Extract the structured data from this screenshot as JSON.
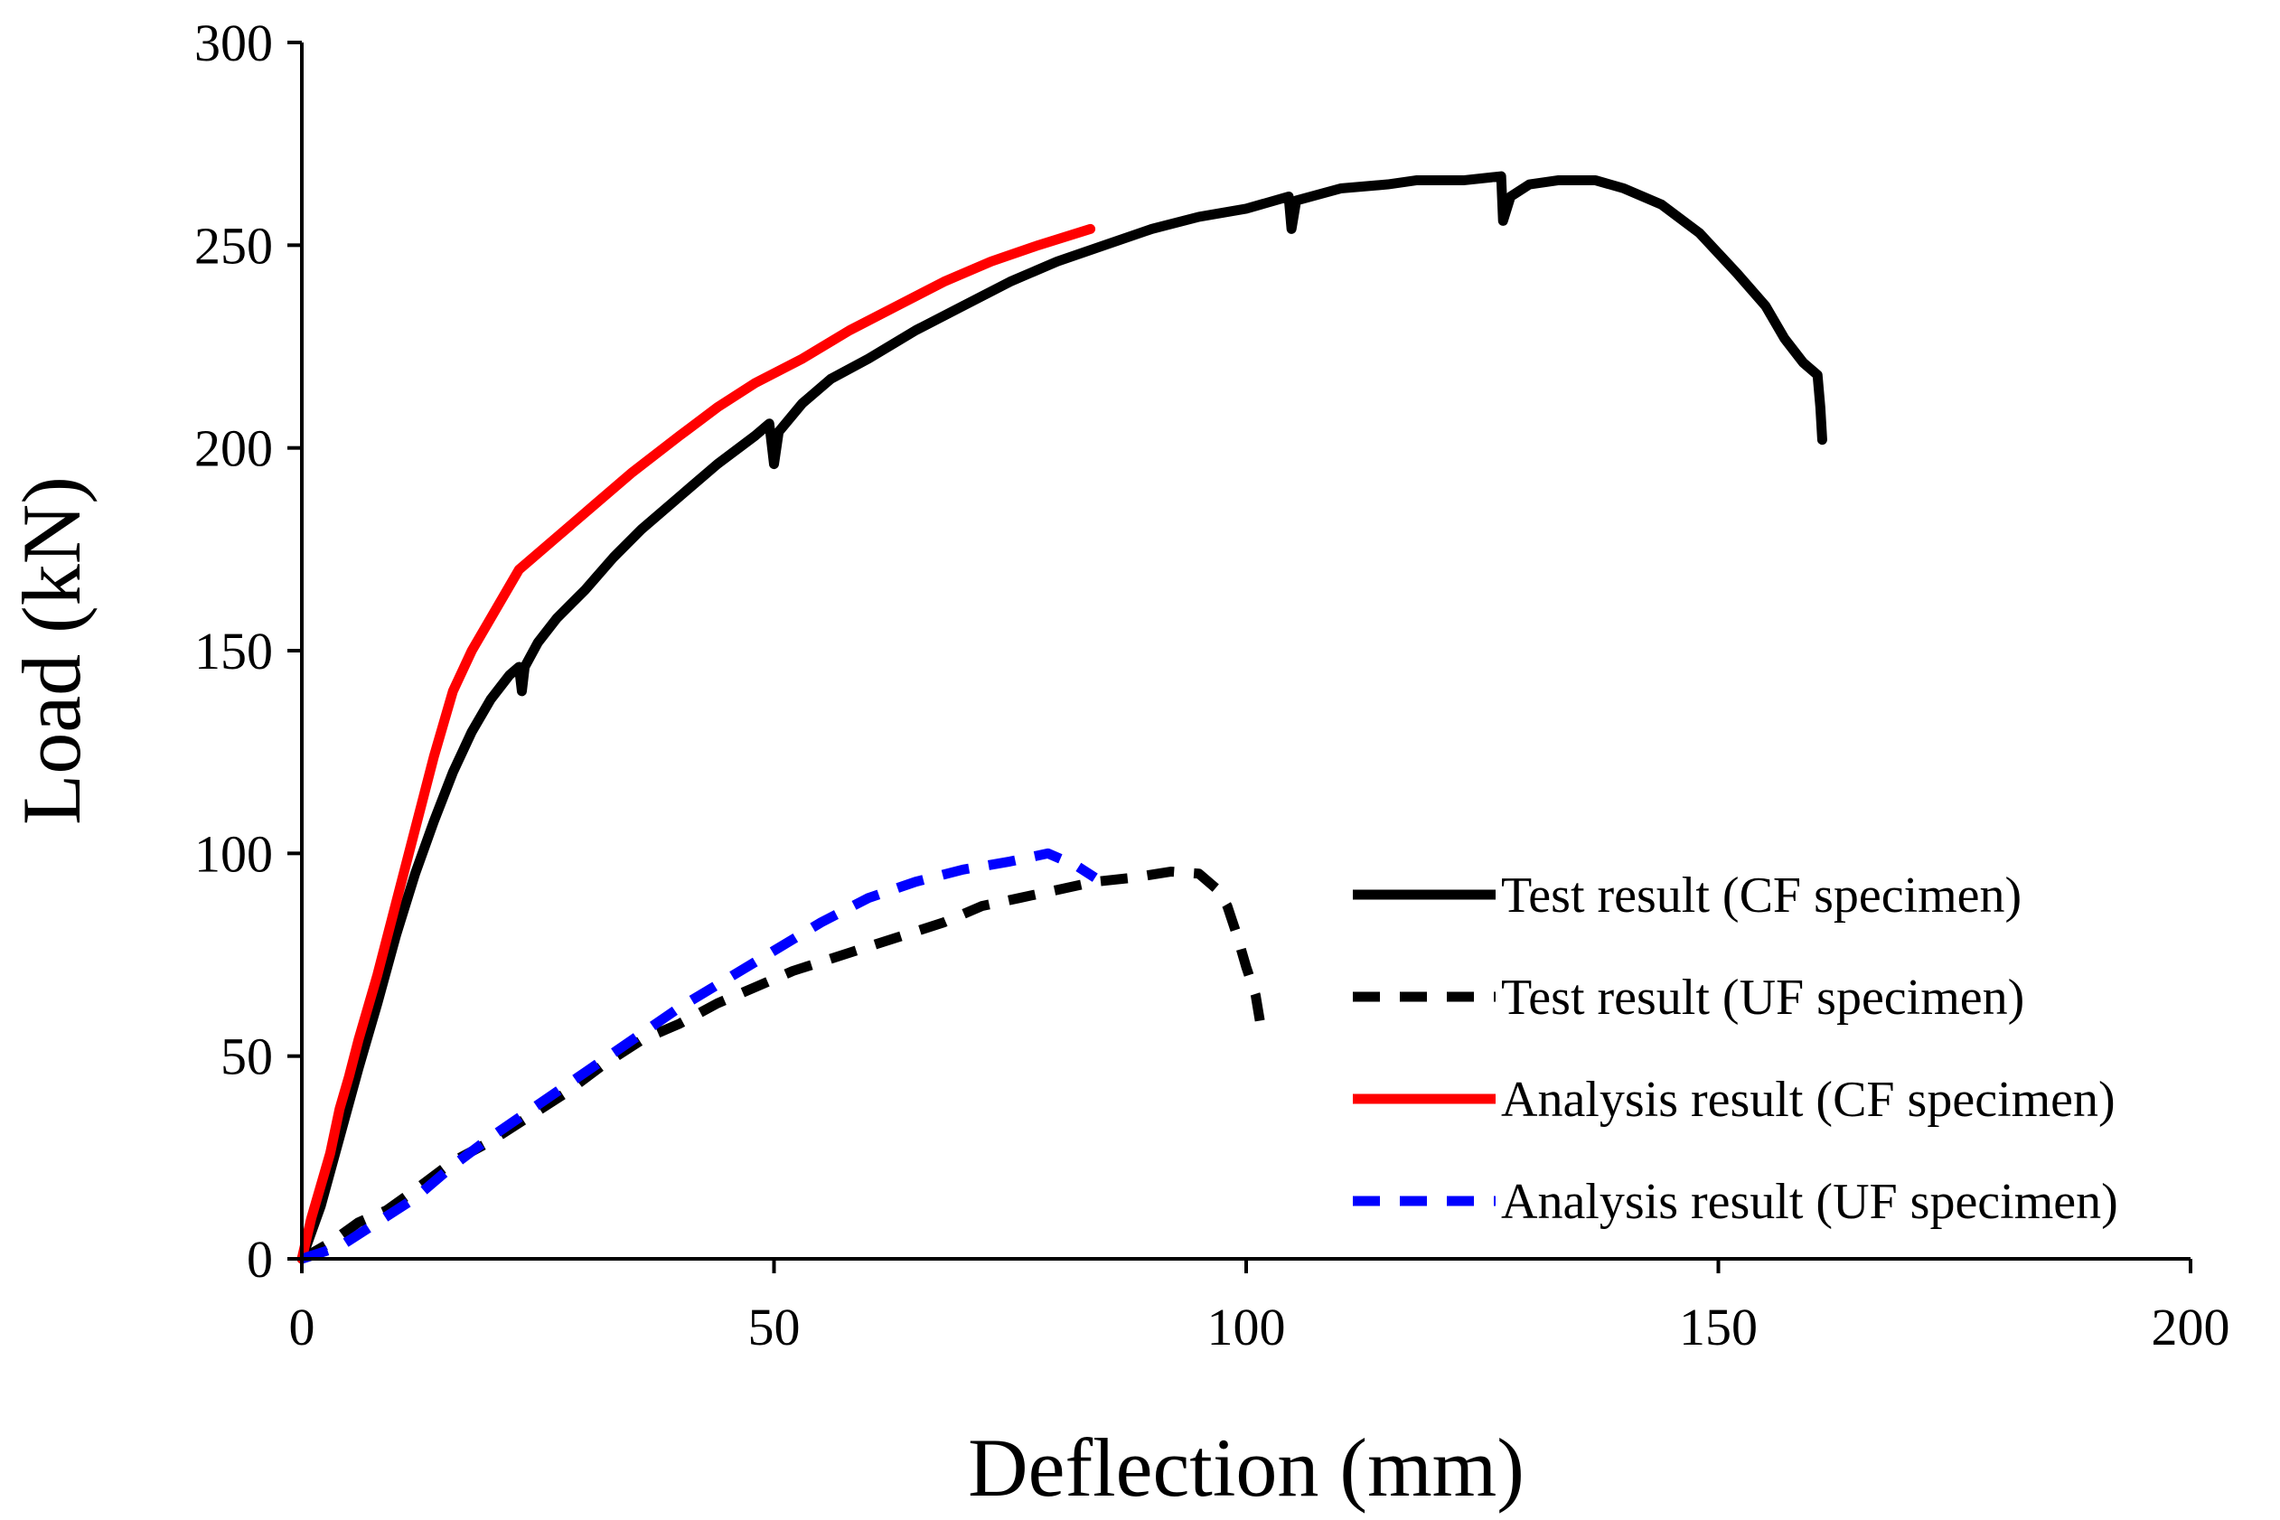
{
  "chart_data": {
    "type": "line",
    "title": "",
    "xlabel": "Deflection (mm)",
    "ylabel": "Load (kN)",
    "xlim": [
      0,
      200
    ],
    "ylim": [
      0,
      300
    ],
    "x_ticks": [
      0,
      50,
      100,
      150,
      200
    ],
    "y_ticks": [
      0,
      50,
      100,
      150,
      200,
      250,
      300
    ],
    "grid": false,
    "legend_position": "bottom-right",
    "series": [
      {
        "name": "Test result (CF specimen)",
        "color": "#000000",
        "style": "solid",
        "points": [
          [
            0,
            0
          ],
          [
            2,
            13
          ],
          [
            4,
            30
          ],
          [
            6,
            47
          ],
          [
            8,
            63
          ],
          [
            10,
            80
          ],
          [
            12,
            95
          ],
          [
            14,
            108
          ],
          [
            16,
            120
          ],
          [
            18,
            130
          ],
          [
            20,
            138
          ],
          [
            22,
            144
          ],
          [
            23,
            146
          ],
          [
            23.3,
            140
          ],
          [
            23.6,
            146
          ],
          [
            25,
            152
          ],
          [
            27,
            158
          ],
          [
            30,
            165
          ],
          [
            33,
            173
          ],
          [
            36,
            180
          ],
          [
            40,
            188
          ],
          [
            44,
            196
          ],
          [
            48,
            203
          ],
          [
            49.5,
            206
          ],
          [
            50,
            196
          ],
          [
            50.5,
            204
          ],
          [
            53,
            211
          ],
          [
            56,
            217
          ],
          [
            60,
            222
          ],
          [
            65,
            229
          ],
          [
            70,
            235
          ],
          [
            75,
            241
          ],
          [
            80,
            246
          ],
          [
            85,
            250
          ],
          [
            90,
            254
          ],
          [
            95,
            257
          ],
          [
            100,
            259
          ],
          [
            104.5,
            262
          ],
          [
            104.8,
            254
          ],
          [
            105.3,
            261
          ],
          [
            110,
            264
          ],
          [
            115,
            265
          ],
          [
            118,
            266
          ],
          [
            123,
            266
          ],
          [
            127,
            267
          ],
          [
            127.2,
            256
          ],
          [
            128,
            262
          ],
          [
            130,
            265
          ],
          [
            133,
            266
          ],
          [
            137,
            266
          ],
          [
            140,
            264
          ],
          [
            144,
            260
          ],
          [
            148,
            253
          ],
          [
            152,
            243
          ],
          [
            155,
            235
          ],
          [
            157,
            227
          ],
          [
            159,
            221
          ],
          [
            160.5,
            218
          ],
          [
            160.8,
            210
          ],
          [
            161,
            202
          ]
        ]
      },
      {
        "name": "Test result (UF specimen)",
        "color": "#000000",
        "style": "dashed",
        "points": [
          [
            0,
            0
          ],
          [
            3,
            4
          ],
          [
            6,
            9
          ],
          [
            9,
            12
          ],
          [
            12,
            17
          ],
          [
            16,
            24
          ],
          [
            20,
            29
          ],
          [
            24,
            35
          ],
          [
            28,
            41
          ],
          [
            32,
            48
          ],
          [
            36,
            54
          ],
          [
            40,
            58
          ],
          [
            44,
            63
          ],
          [
            48,
            67
          ],
          [
            52,
            71
          ],
          [
            56,
            74
          ],
          [
            60,
            77
          ],
          [
            64,
            80
          ],
          [
            68,
            83
          ],
          [
            72,
            87
          ],
          [
            76,
            89
          ],
          [
            80,
            91
          ],
          [
            84,
            93
          ],
          [
            88,
            94
          ],
          [
            92,
            95.5
          ],
          [
            95,
            95
          ],
          [
            97,
            91
          ],
          [
            98,
            87
          ],
          [
            99,
            80
          ],
          [
            100,
            72
          ],
          [
            101,
            65
          ],
          [
            101.5,
            58
          ]
        ]
      },
      {
        "name": "Analysis result (CF specimen)",
        "color": "#ff0000",
        "style": "solid",
        "points": [
          [
            0,
            0
          ],
          [
            1,
            10
          ],
          [
            2,
            18
          ],
          [
            3,
            26
          ],
          [
            4,
            37
          ],
          [
            5,
            45
          ],
          [
            6,
            54
          ],
          [
            7,
            62
          ],
          [
            8,
            70
          ],
          [
            9,
            79
          ],
          [
            10,
            88
          ],
          [
            11,
            97
          ],
          [
            12,
            106
          ],
          [
            13,
            115
          ],
          [
            14,
            124
          ],
          [
            15,
            132
          ],
          [
            16,
            140
          ],
          [
            18,
            150
          ],
          [
            20,
            158
          ],
          [
            23,
            170
          ],
          [
            27,
            178
          ],
          [
            31,
            186
          ],
          [
            35,
            194
          ],
          [
            40,
            203
          ],
          [
            44,
            210
          ],
          [
            48,
            216
          ],
          [
            53,
            222
          ],
          [
            58,
            229
          ],
          [
            63,
            235
          ],
          [
            68,
            241
          ],
          [
            73,
            246
          ],
          [
            78,
            250
          ],
          [
            83.5,
            254
          ]
        ]
      },
      {
        "name": "Analysis result (UF specimen)",
        "color": "#0000ff",
        "style": "dashed",
        "points": [
          [
            0,
            0
          ],
          [
            4,
            3
          ],
          [
            8,
            9
          ],
          [
            12,
            15
          ],
          [
            16,
            23
          ],
          [
            20,
            30
          ],
          [
            25,
            38
          ],
          [
            30,
            46
          ],
          [
            35,
            54
          ],
          [
            40,
            62
          ],
          [
            45,
            69
          ],
          [
            50,
            76
          ],
          [
            55,
            83
          ],
          [
            60,
            89
          ],
          [
            65,
            93
          ],
          [
            70,
            96
          ],
          [
            75,
            98
          ],
          [
            79,
            100
          ],
          [
            82,
            97
          ],
          [
            84,
            94
          ]
        ]
      }
    ]
  }
}
